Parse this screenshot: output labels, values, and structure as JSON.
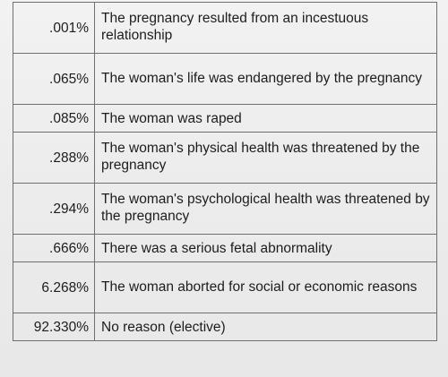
{
  "table": {
    "rows": [
      {
        "percent": ".001%",
        "reason": "The pregnancy resulted from an incestuous relationship"
      },
      {
        "percent": ".065%",
        "reason": "The woman's life was endangered by the pregnancy"
      },
      {
        "percent": ".085%",
        "reason": "The woman was raped"
      },
      {
        "percent": ".288%",
        "reason": "The woman's physical health was threatened by the pregnancy"
      },
      {
        "percent": ".294%",
        "reason": "The woman's psychological health was threatened by the pregnancy"
      },
      {
        "percent": ".666%",
        "reason": "There was a serious fetal abnormality"
      },
      {
        "percent": "6.268%",
        "reason": "The woman aborted for social or economic reasons"
      },
      {
        "percent": "92.330%",
        "reason": "No reason (elective)"
      }
    ]
  }
}
